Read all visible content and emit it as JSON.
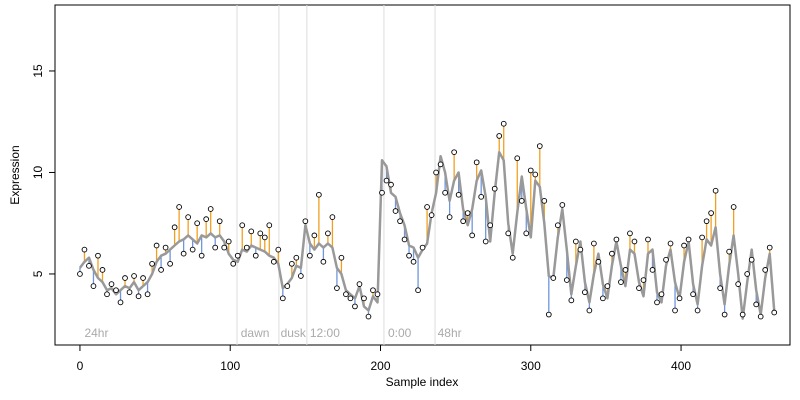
{
  "chart_data": {
    "type": "scatter",
    "x_label": "Sample index",
    "y_label": "Expression",
    "xlim": [
      -16.6,
      472.5
    ],
    "ylim": [
      1.5,
      18.25
    ],
    "xticks": [
      0,
      100,
      200,
      300,
      400
    ],
    "yticks": [
      5,
      10,
      15
    ],
    "vlines": [
      104.5,
      132.4,
      151,
      202.3,
      236.3
    ],
    "vline_color": "#dddddd",
    "annotations": [
      {
        "x": 3,
        "label": "24hr"
      },
      {
        "x": 107,
        "label": "dawn"
      },
      {
        "x": 133.5,
        "label": "dusk"
      },
      {
        "x": 153,
        "label": "12:00"
      },
      {
        "x": 205,
        "label": "0:00"
      },
      {
        "x": 238,
        "label": "48hr"
      }
    ],
    "residual_colors": {
      "above": "#f0a020",
      "below": "#6f96dc"
    },
    "x": [
      0,
      3,
      6,
      9,
      12,
      15,
      18,
      21,
      24,
      27,
      30,
      33,
      36,
      39,
      42,
      45,
      48,
      51,
      54,
      57,
      60,
      63,
      66,
      69,
      72,
      75,
      78,
      81,
      84,
      87,
      90,
      93,
      96,
      99,
      102,
      105,
      108,
      111,
      114,
      117,
      120,
      123,
      126,
      129,
      132,
      135,
      138,
      141,
      144,
      147,
      150,
      153,
      156,
      159,
      162,
      165,
      168,
      171,
      174,
      177,
      180,
      183,
      186,
      189,
      192,
      195,
      198,
      201,
      204,
      207,
      210,
      213,
      216,
      219,
      222,
      225,
      228,
      231,
      234,
      237,
      240,
      243,
      246,
      249,
      252,
      255,
      258,
      261,
      264,
      267,
      270,
      273,
      276,
      279,
      282,
      285,
      288,
      291,
      294,
      297,
      300,
      303,
      306,
      309,
      312,
      315,
      318,
      321,
      324,
      327,
      330,
      333,
      336,
      339,
      342,
      345,
      348,
      351,
      354,
      357,
      360,
      363,
      366,
      369,
      372,
      375,
      378,
      381,
      384,
      387,
      390,
      393,
      396,
      399,
      402,
      405,
      408,
      411,
      414,
      417,
      420,
      423,
      426,
      429,
      432,
      435,
      438,
      441,
      444,
      447,
      450,
      453,
      456,
      459,
      462
    ],
    "series": [
      {
        "style": "line",
        "color": "#999999",
        "values": [
          5.3,
          5.6,
          5.8,
          5.2,
          4.8,
          4.6,
          4.2,
          4.3,
          4.0,
          4.2,
          4.4,
          4.3,
          4.6,
          4.2,
          4.4,
          4.6,
          5.0,
          5.6,
          5.9,
          6.0,
          6.2,
          6.4,
          6.6,
          6.7,
          6.9,
          6.7,
          6.5,
          6.9,
          6.8,
          7.0,
          6.8,
          6.9,
          6.6,
          6.0,
          5.7,
          5.6,
          6.2,
          6.1,
          6.4,
          6.3,
          6.2,
          6.1,
          5.9,
          5.8,
          5.5,
          4.3,
          4.5,
          4.8,
          5.4,
          5.3,
          7.4,
          6.5,
          6.2,
          6.5,
          6.3,
          6.5,
          6.3,
          5.3,
          5.0,
          4.2,
          4.0,
          3.8,
          4.4,
          3.4,
          3.2,
          3.9,
          3.6,
          10.6,
          10.3,
          9.0,
          8.8,
          8.0,
          7.4,
          6.4,
          6.3,
          5.8,
          6.2,
          6.5,
          8.0,
          9.0,
          10.8,
          10.0,
          8.6,
          9.6,
          10.0,
          8.2,
          7.4,
          8.2,
          9.6,
          10.1,
          8.8,
          6.6,
          9.0,
          11.0,
          10.6,
          7.5,
          6.0,
          8.0,
          9.8,
          8.2,
          6.8,
          9.6,
          9.3,
          7.5,
          4.9,
          4.8,
          6.8,
          8.2,
          6.2,
          4.0,
          5.4,
          6.6,
          4.6,
          3.6,
          5.0,
          6.0,
          4.5,
          3.8,
          5.4,
          6.6,
          5.4,
          4.4,
          6.2,
          6.0,
          4.6,
          3.9,
          6.0,
          6.2,
          4.1,
          3.6,
          5.4,
          6.2,
          4.6,
          3.8,
          5.6,
          6.6,
          4.5,
          3.5,
          5.4,
          6.7,
          6.4,
          7.3,
          5.0,
          3.5,
          5.4,
          6.9,
          5.0,
          2.8,
          4.6,
          6.2,
          4.2,
          3.0,
          4.8,
          6.0,
          3.2
        ]
      },
      {
        "style": "points",
        "color": "#000000",
        "values": [
          5.0,
          6.2,
          5.4,
          4.4,
          5.9,
          5.2,
          4.0,
          4.5,
          4.2,
          3.6,
          4.8,
          4.1,
          4.9,
          3.9,
          4.8,
          4.0,
          5.5,
          6.4,
          5.2,
          6.3,
          5.5,
          7.3,
          8.3,
          6.0,
          7.8,
          6.2,
          7.5,
          5.9,
          7.7,
          8.2,
          6.3,
          7.6,
          6.3,
          6.6,
          5.5,
          5.9,
          7.4,
          6.3,
          7.1,
          5.9,
          7.0,
          6.8,
          7.4,
          5.6,
          6.2,
          3.8,
          4.4,
          5.5,
          5.8,
          4.9,
          7.6,
          5.9,
          6.9,
          8.9,
          5.6,
          7.0,
          7.8,
          4.3,
          5.8,
          4.0,
          3.8,
          3.4,
          4.5,
          3.8,
          2.9,
          4.2,
          4.0,
          9.0,
          9.6,
          9.4,
          8.1,
          7.6,
          6.7,
          5.9,
          5.6,
          4.2,
          6.3,
          8.3,
          7.9,
          10.0,
          10.4,
          9.0,
          7.8,
          11.0,
          8.9,
          7.6,
          8.0,
          6.9,
          10.5,
          8.8,
          6.6,
          7.4,
          9.2,
          11.8,
          12.4,
          7.0,
          5.8,
          10.7,
          8.6,
          7.0,
          10.1,
          9.9,
          11.3,
          8.6,
          3.0,
          4.8,
          7.4,
          8.4,
          4.7,
          3.7,
          6.6,
          6.2,
          4.1,
          3.2,
          6.5,
          5.6,
          3.8,
          4.4,
          6.0,
          6.7,
          4.6,
          5.2,
          7.0,
          6.6,
          4.3,
          4.7,
          6.7,
          5.2,
          3.6,
          4.0,
          5.7,
          6.5,
          3.2,
          3.8,
          6.4,
          6.7,
          4.0,
          3.2,
          6.8,
          7.6,
          8.0,
          9.1,
          4.3,
          3.0,
          6.1,
          8.3,
          4.5,
          3.0,
          5.0,
          5.7,
          3.5,
          2.9,
          5.2,
          6.3,
          3.1
        ]
      }
    ]
  }
}
